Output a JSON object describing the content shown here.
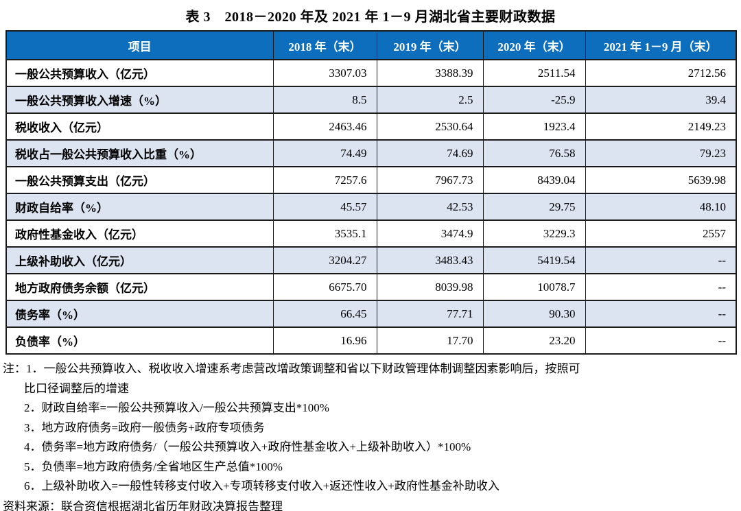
{
  "title": "表 3　2018－2020 年及 2021 年 1－9 月湖北省主要财政数据",
  "table": {
    "columns": [
      "项目",
      "2018 年（末）",
      "2019 年（末）",
      "2020 年（末）",
      "2021 年 1－9 月（末）"
    ],
    "rows": [
      {
        "label": "一般公共预算收入（亿元）",
        "values": [
          "3307.03",
          "3388.39",
          "2511.54",
          "2712.56"
        ]
      },
      {
        "label": "一般公共预算收入增速（%）",
        "values": [
          "8.5",
          "2.5",
          "-25.9",
          "39.4"
        ]
      },
      {
        "label": "税收收入（亿元）",
        "values": [
          "2463.46",
          "2530.64",
          "1923.4",
          "2149.23"
        ]
      },
      {
        "label": "税收占一般公共预算收入比重（%）",
        "values": [
          "74.49",
          "74.69",
          "76.58",
          "79.23"
        ]
      },
      {
        "label": "一般公共预算支出（亿元）",
        "values": [
          "7257.6",
          "7967.73",
          "8439.04",
          "5639.98"
        ]
      },
      {
        "label": "财政自给率（%）",
        "values": [
          "45.57",
          "42.53",
          "29.75",
          "48.10"
        ]
      },
      {
        "label": "政府性基金收入（亿元）",
        "values": [
          "3535.1",
          "3474.9",
          "3229.3",
          "2557"
        ]
      },
      {
        "label": "上级补助收入（亿元）",
        "values": [
          "3204.27",
          "3483.43",
          "5419.54",
          "--"
        ]
      },
      {
        "label": "地方政府债务余额（亿元）",
        "values": [
          "6675.70",
          "8039.98",
          "10078.7",
          "--"
        ]
      },
      {
        "label": "债务率（%）",
        "values": [
          "66.45",
          "77.71",
          "90.30",
          "--"
        ]
      },
      {
        "label": "负债率（%）",
        "values": [
          "16.96",
          "17.70",
          "23.20",
          "--"
        ]
      }
    ]
  },
  "notes": {
    "lines": [
      {
        "text": "注：1．一般公共预算收入、税收收入增速系考虑营改增政策调整和省以下财政管理体制调整因素影响后，按照可",
        "indent": 0
      },
      {
        "text": "比口径调整后的增速",
        "indent": 1
      },
      {
        "text": "2．财政自给率=一般公共预算收入/一般公共预算支出*100%",
        "indent": 1
      },
      {
        "text": "3．地方政府债务=政府一般债务+政府专项债务",
        "indent": 1
      },
      {
        "text": "4．债务率=地方政府债务/（一般公共预算收入+政府性基金收入+上级补助收入）*100%",
        "indent": 1
      },
      {
        "text": "5．负债率=地方政府债务/全省地区生产总值*100%",
        "indent": 1
      },
      {
        "text": "6．上级补助收入=一般性转移支付收入+专项转移支付收入+返还性收入+政府性基金补助收入",
        "indent": 1
      }
    ],
    "source": "资料来源：联合资信根据湖北省历年财政决算报告整理"
  },
  "colors": {
    "header_bg": "#0d6ebe",
    "row_bg_white": "#ffffff",
    "row_bg_alt": "#dce4f1",
    "border": "#1b1b1b",
    "header_text": "#ffffff",
    "body_text": "#000000"
  }
}
